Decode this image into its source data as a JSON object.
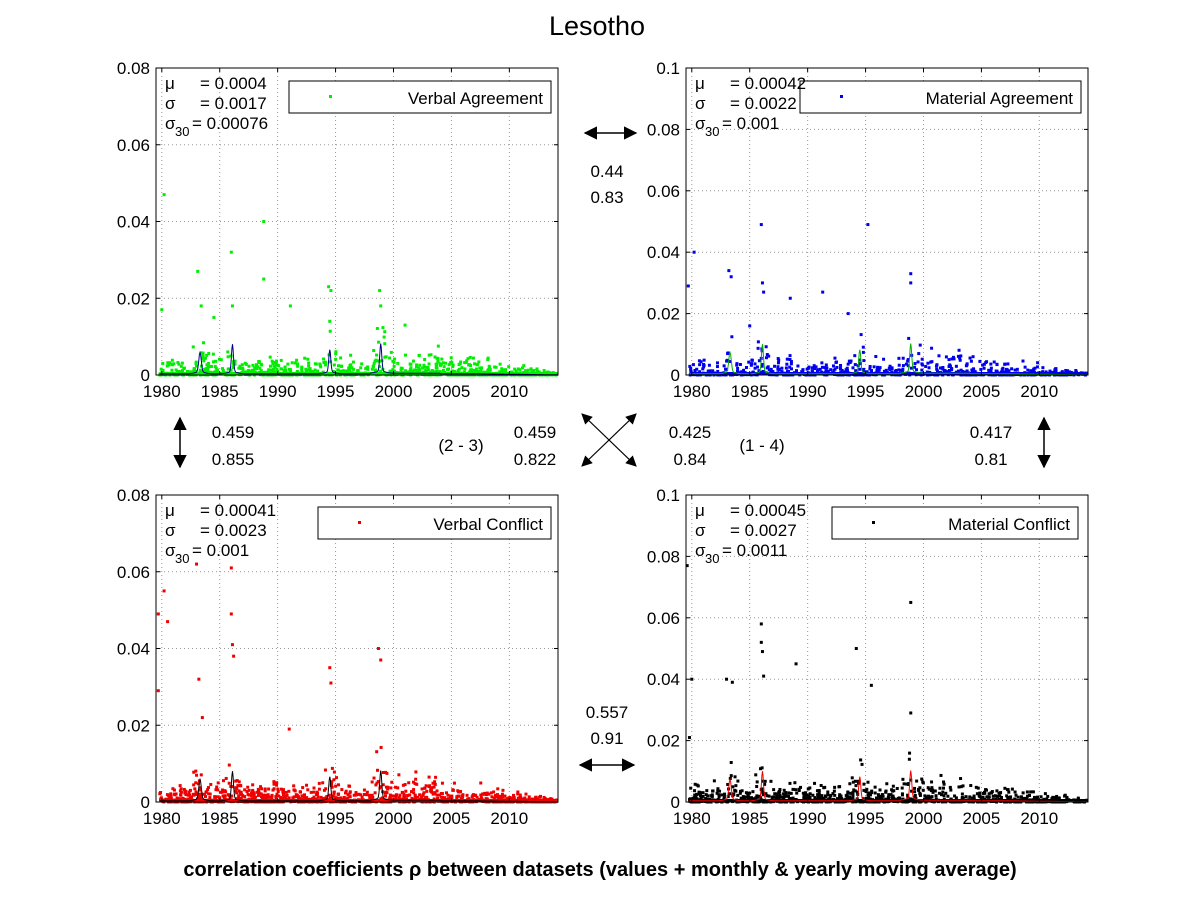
{
  "figure": {
    "title": "Lesotho",
    "footer": "correlation coefficients ρ between datasets (values + monthly & yearly moving average)"
  },
  "chart_data": [
    {
      "type": "scatter",
      "panel": "top-left",
      "legend": "Verbal Agreement",
      "legend_placement": "top-right",
      "color": "#00ee00",
      "mean_color": "#000080",
      "stats": {
        "mu": "= 0.0004",
        "sigma": "= 0.0017",
        "sigma30": "= 0.00076"
      },
      "xlim": [
        1979.5,
        2014.2
      ],
      "ylim": [
        0,
        0.08
      ],
      "xticks": [
        "1980",
        "1985",
        "1990",
        "1995",
        "2000",
        "2005",
        "2010"
      ],
      "yticks": [
        "0",
        "0.02",
        "0.04",
        "0.06",
        "0.08"
      ],
      "grid": true,
      "density": 1.0,
      "spikes": [
        [
          1980.2,
          0.047
        ],
        [
          1983.1,
          0.027
        ],
        [
          1983.4,
          0.018
        ],
        [
          1986.0,
          0.032
        ],
        [
          1986.1,
          0.018
        ],
        [
          1988.8,
          0.04
        ],
        [
          1988.8,
          0.025
        ],
        [
          1994.4,
          0.023
        ],
        [
          1994.6,
          0.022
        ],
        [
          1994.5,
          0.014
        ],
        [
          1998.8,
          0.022
        ],
        [
          1998.9,
          0.018
        ],
        [
          1980.0,
          0.017
        ],
        [
          1984.5,
          0.015
        ],
        [
          1991.1,
          0.018
        ],
        [
          2001.0,
          0.013
        ]
      ]
    },
    {
      "type": "scatter",
      "panel": "top-right",
      "legend": "Material Agreement",
      "legend_placement": "top-right",
      "color": "#0000ee",
      "mean_color": "#00aa00",
      "stats": {
        "mu": "= 0.00042",
        "sigma": "= 0.0022",
        "sigma30": "= 0.001"
      },
      "xlim": [
        1979.5,
        2014.2
      ],
      "ylim": [
        0,
        0.1
      ],
      "xticks": [
        "1980",
        "1985",
        "1990",
        "1995",
        "2000",
        "2005",
        "2010"
      ],
      "yticks": [
        "0",
        "0.02",
        "0.04",
        "0.06",
        "0.08",
        "0.1"
      ],
      "grid": true,
      "density": 0.75,
      "spikes": [
        [
          1980.2,
          0.04
        ],
        [
          1979.7,
          0.029
        ],
        [
          1983.2,
          0.034
        ],
        [
          1983.4,
          0.032
        ],
        [
          1986.0,
          0.049
        ],
        [
          1986.1,
          0.03
        ],
        [
          1986.2,
          0.027
        ],
        [
          1988.5,
          0.025
        ],
        [
          1991.3,
          0.027
        ],
        [
          1995.2,
          0.049
        ],
        [
          1998.9,
          0.033
        ],
        [
          1998.9,
          0.03
        ],
        [
          1993.5,
          0.02
        ],
        [
          1985.0,
          0.016
        ]
      ]
    },
    {
      "type": "scatter",
      "panel": "bottom-left",
      "legend": "Verbal Conflict",
      "legend_placement": "top-right",
      "color": "#ee0000",
      "mean_color": "#000000",
      "stats": {
        "mu": "= 0.00041",
        "sigma": "= 0.0023",
        "sigma30": "= 0.001"
      },
      "xlim": [
        1979.5,
        2014.2
      ],
      "ylim": [
        0,
        0.08
      ],
      "xticks": [
        "1980",
        "1985",
        "1990",
        "1995",
        "2000",
        "2005",
        "2010"
      ],
      "yticks": [
        "0",
        "0.02",
        "0.04",
        "0.06",
        "0.08"
      ],
      "grid": true,
      "density": 1.2,
      "spikes": [
        [
          1979.7,
          0.049
        ],
        [
          1980.2,
          0.055
        ],
        [
          1980.5,
          0.047
        ],
        [
          1979.7,
          0.029
        ],
        [
          1983.0,
          0.062
        ],
        [
          1983.2,
          0.032
        ],
        [
          1986.0,
          0.061
        ],
        [
          1986.0,
          0.049
        ],
        [
          1986.1,
          0.041
        ],
        [
          1986.2,
          0.038
        ],
        [
          1994.5,
          0.035
        ],
        [
          1994.6,
          0.031
        ],
        [
          1998.7,
          0.04
        ],
        [
          1998.9,
          0.037
        ],
        [
          1983.5,
          0.022
        ],
        [
          1991.0,
          0.019
        ]
      ]
    },
    {
      "type": "scatter",
      "panel": "bottom-right",
      "legend": "Material Conflict",
      "legend_placement": "top-right",
      "color": "#000000",
      "mean_color": "#ee0000",
      "stats": {
        "mu": "= 0.00045",
        "sigma": "= 0.0027",
        "sigma30": "= 0.0011"
      },
      "xlim": [
        1979.5,
        2014.2
      ],
      "ylim": [
        0,
        0.1
      ],
      "xticks": [
        "1980",
        "1985",
        "1990",
        "1995",
        "2000",
        "2005",
        "2010"
      ],
      "yticks": [
        "0",
        "0.02",
        "0.04",
        "0.06",
        "0.08",
        "0.1"
      ],
      "grid": true,
      "density": 1.0,
      "spikes": [
        [
          1979.6,
          0.077
        ],
        [
          1980.0,
          0.04
        ],
        [
          1983.0,
          0.04
        ],
        [
          1983.5,
          0.039
        ],
        [
          1986.0,
          0.058
        ],
        [
          1986.0,
          0.052
        ],
        [
          1986.1,
          0.049
        ],
        [
          1989.0,
          0.045
        ],
        [
          1994.2,
          0.05
        ],
        [
          1998.9,
          0.065
        ],
        [
          1998.9,
          0.029
        ],
        [
          1979.8,
          0.021
        ],
        [
          1995.5,
          0.038
        ],
        [
          1986.2,
          0.041
        ]
      ]
    }
  ],
  "correlations": {
    "top": {
      "a": "0.44",
      "b": "0.83"
    },
    "bottom": {
      "a": "0.557",
      "b": "0.91"
    },
    "left": {
      "a": "0.459",
      "b": "0.855"
    },
    "right": {
      "a": "0.417",
      "b": "0.81"
    },
    "diag_23": {
      "label": "(2 - 3)",
      "a": "0.459",
      "b": "0.822"
    },
    "diag_14": {
      "label": "(1 - 4)",
      "a": "0.425",
      "b": "0.84"
    }
  }
}
